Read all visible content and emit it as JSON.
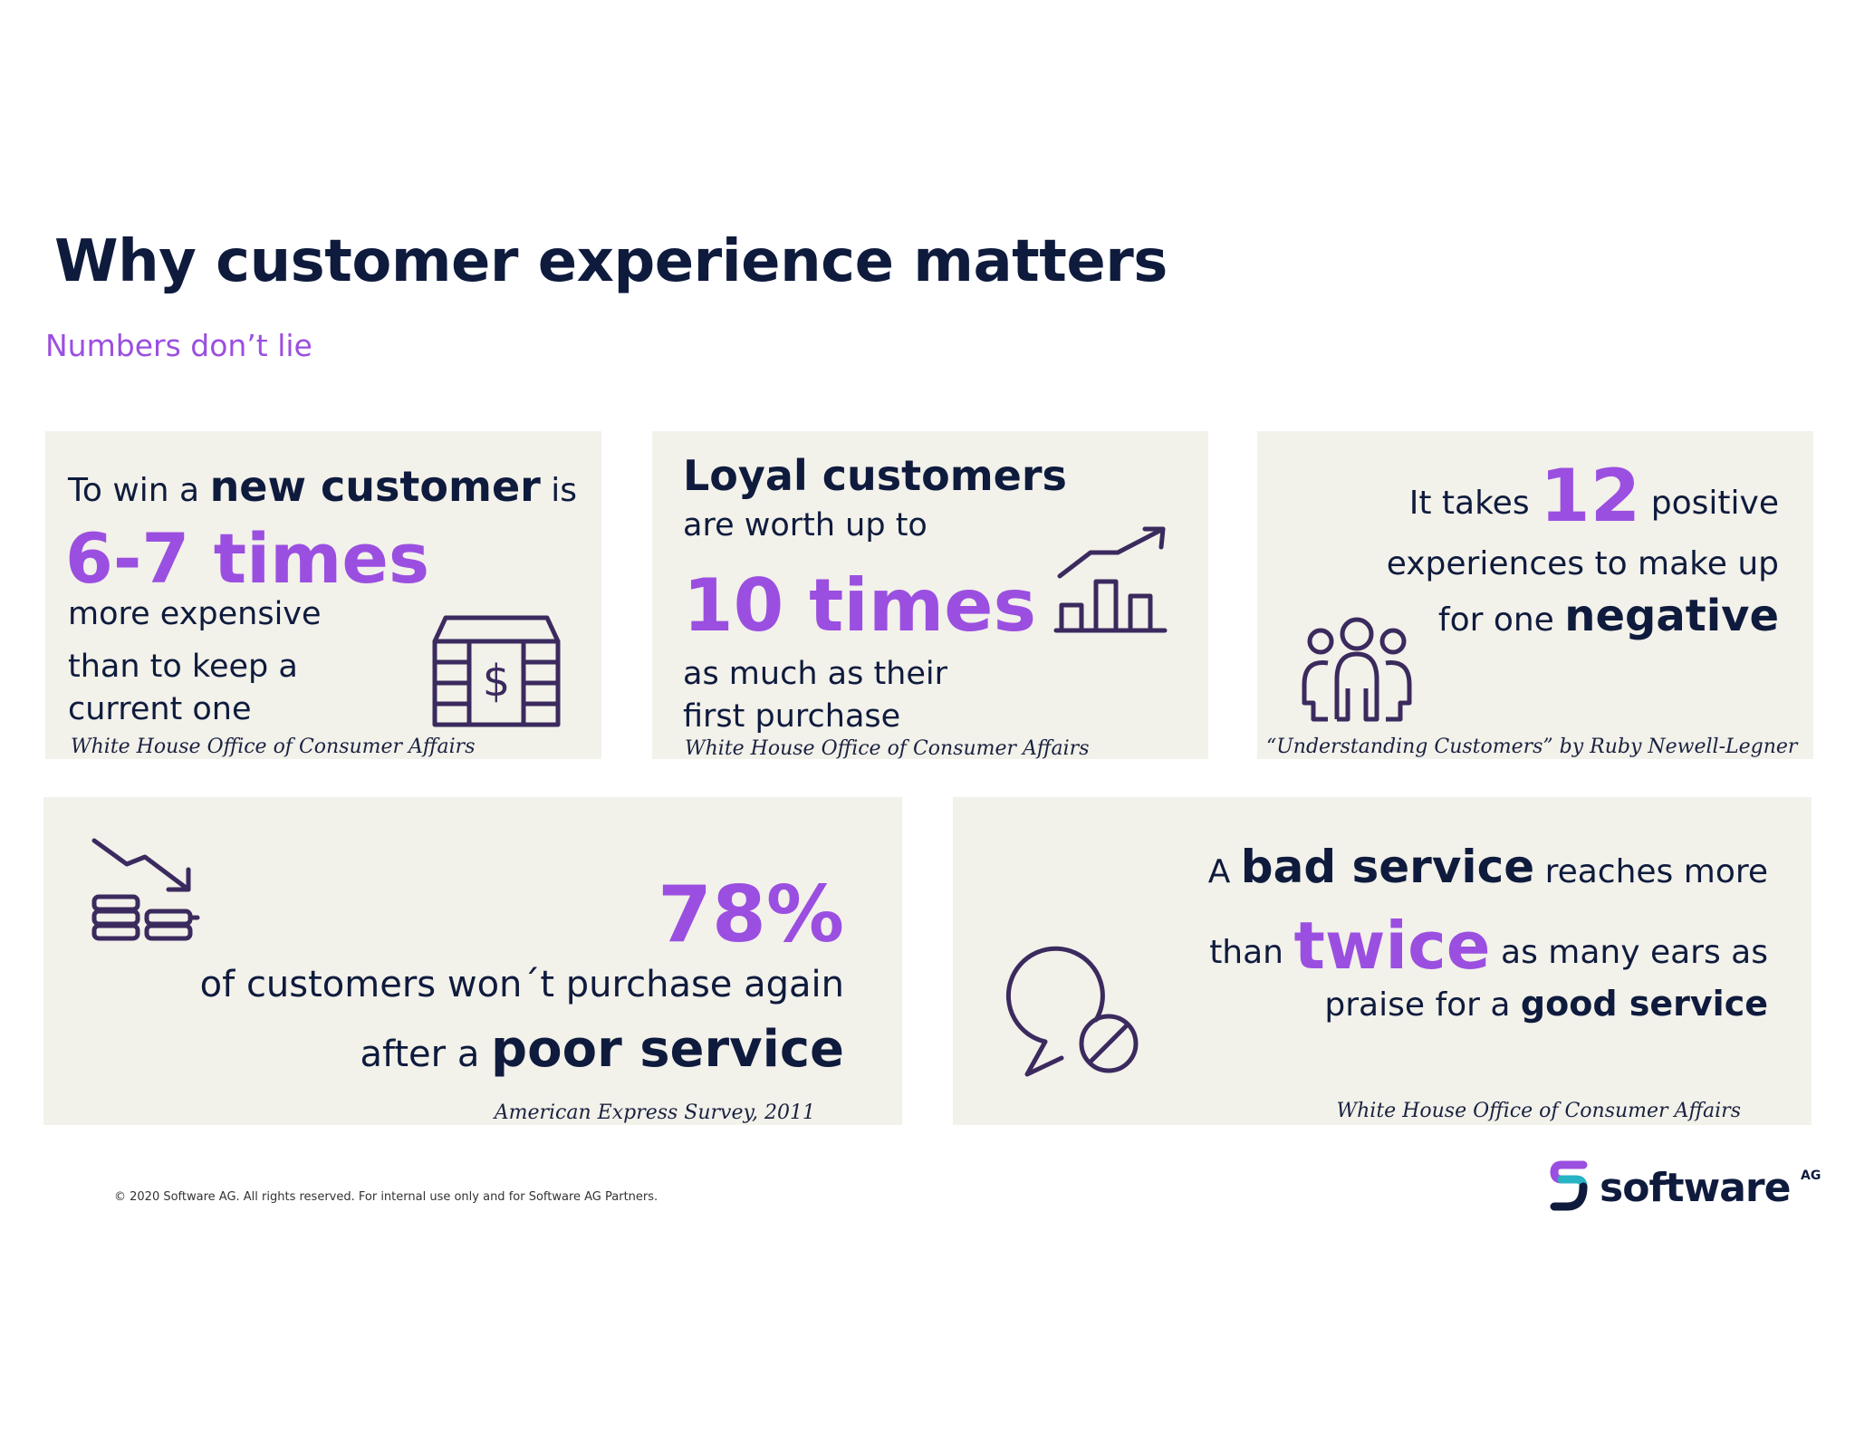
{
  "header": {
    "title": "Why customer experience matters",
    "subtitle": "Numbers don’t lie"
  },
  "card1": {
    "pre": "To win a ",
    "bold": "new customer",
    "post": " is",
    "stat": "6-7 times",
    "line1": "more expensive",
    "line2": "than to keep a",
    "line3": "current one",
    "source": "White House Office of Consumer Affairs",
    "icon": "cash-stack-icon",
    "dollar": "$"
  },
  "card2": {
    "bold": "Loyal customers",
    "line1": "are worth up to",
    "stat": "10 times",
    "line2": "as much as their",
    "line3": "first purchase",
    "source": "White House Office of Consumer Affairs",
    "icon": "growth-chart-icon"
  },
  "card3": {
    "pre": "It takes ",
    "stat": "12",
    "post": " positive",
    "line2": "experiences to make up",
    "pre3": "for one ",
    "bold": "negative",
    "source": "“Understanding Customers” by Ruby Newell-Legner",
    "icon": "people-group-icon"
  },
  "card4": {
    "stat": "78%",
    "line1": "of customers won´t purchase again",
    "pre2": "after a ",
    "bold": "poor service",
    "source": "American Express Survey, 2011",
    "icon": "declining-coins-icon"
  },
  "card5": {
    "pre1": "A ",
    "bold1": "bad service",
    "post1": " reaches more",
    "pre2": "than ",
    "stat": "twice",
    "post2": "  as  many ears as",
    "pre3": "praise for a ",
    "bold3": "good service",
    "source": "White House Office of Consumer Affairs",
    "icon": "blocked-speech-bubble-icon"
  },
  "footer": {
    "copyright": "© 2020 Software AG. All rights reserved. For internal use only and for Software AG Partners."
  },
  "logo": {
    "name": "software",
    "suffix": "AG",
    "icon": "software-ag-logo-icon",
    "colors": {
      "teal": "#28b3c4",
      "purple": "#9b4fe0",
      "navy": "#0f1b3d"
    }
  },
  "colors": {
    "accent": "#9b4fe0",
    "navy": "#0f1b3d",
    "card_bg": "#f2f1ea"
  }
}
